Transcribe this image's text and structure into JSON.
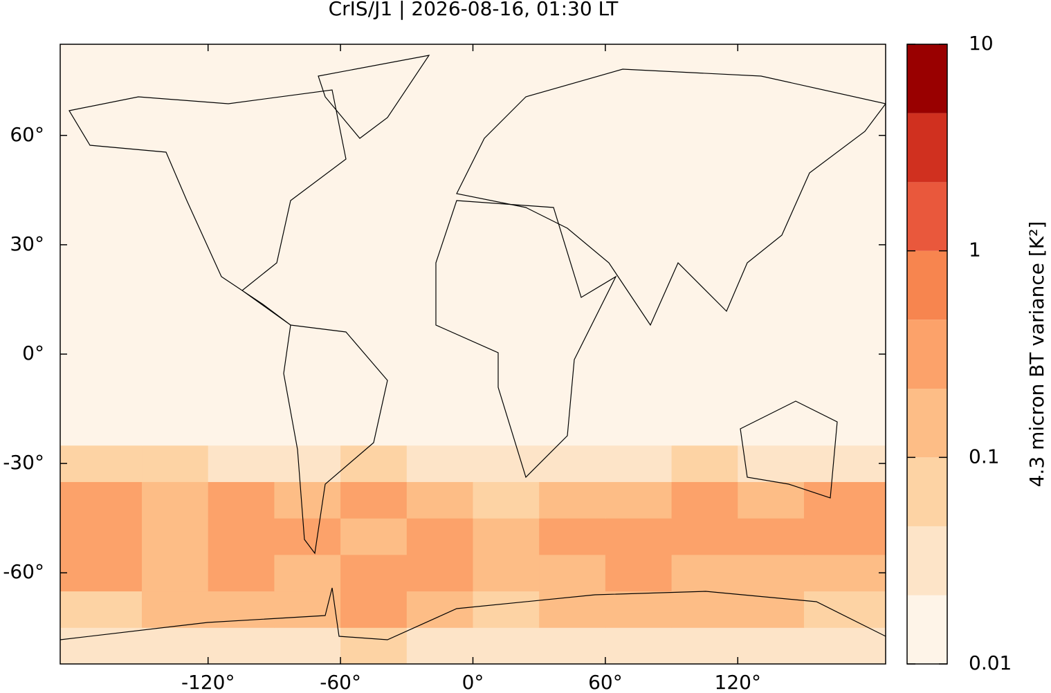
{
  "chart_data": {
    "type": "map",
    "title": "CrIS/J1 | 2026-08-16, 01:30 LT",
    "xlim": [
      -187,
      187
    ],
    "ylim": [
      -85,
      85
    ],
    "xticks": [
      {
        "value": -120,
        "label": "-120°"
      },
      {
        "value": -60,
        "label": "-60°"
      },
      {
        "value": 0,
        "label": "0°"
      },
      {
        "value": 60,
        "label": "60°"
      },
      {
        "value": 120,
        "label": "120°"
      }
    ],
    "yticks": [
      {
        "value": -60,
        "label": "-60°"
      },
      {
        "value": -30,
        "label": "-30°"
      },
      {
        "value": 0,
        "label": "0°"
      },
      {
        "value": 30,
        "label": "30°"
      },
      {
        "value": 60,
        "label": "60°"
      }
    ],
    "field": {
      "lon_edges": [
        -187,
        -150,
        -120,
        -90,
        -60,
        -30,
        0,
        30,
        60,
        90,
        120,
        150,
        187
      ],
      "lat_edges": [
        -85,
        -75,
        -65,
        -55,
        -45,
        -35,
        -25,
        85
      ],
      "values": [
        [
          0.03,
          0.03,
          0.03,
          0.04,
          0.06,
          0.04,
          0.03,
          0.03,
          0.03,
          0.03,
          0.03,
          0.03
        ],
        [
          0.08,
          0.1,
          0.12,
          0.15,
          0.3,
          0.1,
          0.06,
          0.12,
          0.2,
          0.15,
          0.12,
          0.08
        ],
        [
          0.25,
          0.15,
          0.3,
          0.2,
          0.3,
          0.25,
          0.12,
          0.2,
          0.3,
          0.2,
          0.15,
          0.15
        ],
        [
          0.3,
          0.15,
          0.35,
          0.25,
          0.2,
          0.35,
          0.1,
          0.3,
          0.3,
          0.4,
          0.3,
          0.25
        ],
        [
          0.3,
          0.2,
          0.25,
          0.15,
          0.4,
          0.12,
          0.08,
          0.12,
          0.2,
          0.35,
          0.2,
          0.4
        ],
        [
          0.05,
          0.05,
          0.04,
          0.04,
          0.06,
          0.04,
          0.03,
          0.04,
          0.04,
          0.05,
          0.04,
          0.04
        ],
        [
          0.015,
          0.015,
          0.015,
          0.015,
          0.015,
          0.015,
          0.015,
          0.015,
          0.015,
          0.015,
          0.015,
          0.015
        ]
      ]
    },
    "colorbar": {
      "label": "4.3 micron BT variance [K²]",
      "log_scale": true,
      "lim": [
        0.01,
        10
      ],
      "ticks": [
        0.01,
        0.1,
        1,
        10
      ],
      "levels": [
        0.01,
        0.0215,
        0.0464,
        0.1,
        0.215,
        0.464,
        1,
        2.15,
        4.64,
        10
      ],
      "colors": [
        "#fef4e8",
        "#fde4c8",
        "#fdd3a4",
        "#fdbd86",
        "#fca26a",
        "#f7854f",
        "#e9583c",
        "#d0301f",
        "#990000"
      ]
    }
  }
}
